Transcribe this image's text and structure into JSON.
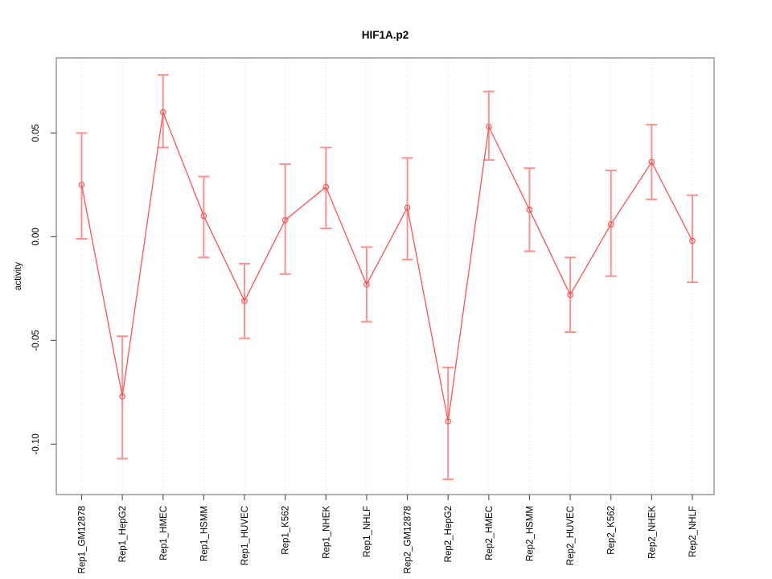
{
  "window": {
    "background": "#ffffff"
  },
  "chart_data": {
    "type": "line",
    "title": "HIF1A.p2",
    "xlabel": "",
    "ylabel": "activity",
    "categories": [
      "Rep1_GM12878",
      "Rep1_HepG2",
      "Rep1_HMEC",
      "Rep1_HSMM",
      "Rep1_HUVEC",
      "Rep1_K562",
      "Rep1_NHEK",
      "Rep1_NHLF",
      "Rep2_GM12878",
      "Rep2_HepG2",
      "Rep2_HMEC",
      "Rep2_HSMM",
      "Rep2_HUVEC",
      "Rep2_K562",
      "Rep2_NHEK",
      "Rep2_NHLF"
    ],
    "series": [
      {
        "name": "activity",
        "values": [
          0.025,
          -0.077,
          0.06,
          0.01,
          -0.031,
          0.008,
          0.024,
          -0.023,
          0.014,
          -0.089,
          0.053,
          0.013,
          -0.028,
          0.006,
          0.036,
          -0.002
        ],
        "error_low": [
          -0.001,
          -0.107,
          0.043,
          -0.01,
          -0.049,
          -0.018,
          0.004,
          -0.041,
          -0.011,
          -0.117,
          0.037,
          -0.007,
          -0.046,
          -0.019,
          0.018,
          -0.022
        ],
        "error_high": [
          0.05,
          -0.048,
          0.078,
          0.029,
          -0.013,
          0.035,
          0.043,
          -0.005,
          0.038,
          -0.063,
          0.07,
          0.033,
          -0.01,
          0.032,
          0.054,
          0.02
        ]
      }
    ],
    "ylim": [
      -0.1243,
      0.0862
    ],
    "yticks": {
      "values": [
        0.05,
        0.0,
        -0.05,
        -0.1
      ],
      "labels": [
        "0.05",
        "0.00",
        "-0.05",
        "-0.10"
      ]
    },
    "grid": {
      "vertical": "dotted line at every category",
      "horizontal": "dotted line at y = 0 only"
    },
    "legend": "none",
    "marker": "open-circle",
    "colors": {
      "line": "#ff5252",
      "marker": "#ff5252",
      "error_bar": "#ff9090",
      "grid": "#dcdcdc",
      "box": "#999999",
      "tick": "#5a5a5a",
      "text": "#000000"
    }
  }
}
